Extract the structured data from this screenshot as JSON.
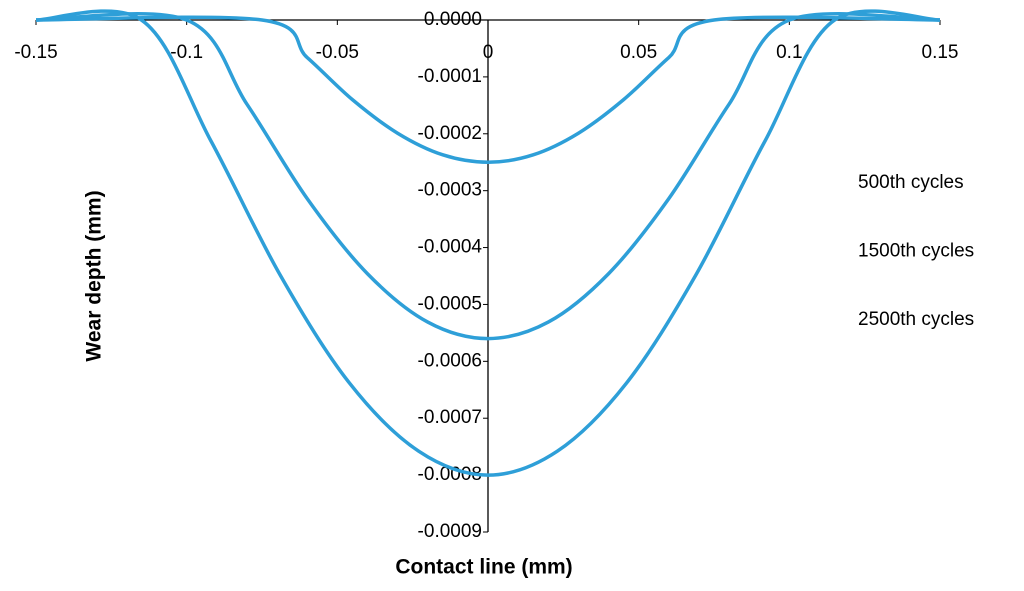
{
  "chart_data": {
    "type": "line",
    "x_label": "Contact line (mm)",
    "y_label": "Wear depth (mm)",
    "series": [
      {
        "name": "500th cycles",
        "color": "#2e9fd8",
        "x": [
          -0.15,
          -0.075,
          -0.06,
          -0.045,
          -0.03,
          -0.015,
          0,
          0.015,
          0.03,
          0.045,
          0.06,
          0.075,
          0.15
        ],
        "values": [
          0,
          0,
          -6.6e-05,
          -0.00014,
          -0.000199,
          -0.000237,
          -0.00025,
          -0.000237,
          -0.000199,
          -0.00014,
          -6.6e-05,
          0,
          0
        ]
      },
      {
        "name": "1500th cycles",
        "color": "#2e9fd8",
        "x": [
          -0.15,
          -0.1,
          -0.08,
          -0.06,
          -0.04,
          -0.02,
          0,
          0.02,
          0.04,
          0.06,
          0.08,
          0.1,
          0.15
        ],
        "values": [
          0,
          0,
          -0.000148,
          -0.000314,
          -0.000446,
          -0.000531,
          -0.00056,
          -0.000531,
          -0.000446,
          -0.000314,
          -0.000148,
          0,
          0
        ]
      },
      {
        "name": "2500th cycles",
        "color": "#2e9fd8",
        "x": [
          -0.15,
          -0.115,
          -0.092,
          -0.069,
          -0.046,
          -0.023,
          0,
          0.023,
          0.046,
          0.069,
          0.092,
          0.115,
          0.15
        ],
        "values": [
          0,
          0,
          -0.000212,
          -0.000448,
          -0.000638,
          -0.000758,
          -0.0008,
          -0.000758,
          -0.000638,
          -0.000448,
          -0.000212,
          0,
          0
        ]
      }
    ],
    "xlim": [
      -0.15,
      0.15
    ],
    "xticks": [
      -0.15,
      -0.1,
      -0.05,
      0,
      0.05,
      0.1,
      0.15
    ],
    "ylim": [
      -0.0009,
      0
    ],
    "yticks": [
      {
        "value": 0,
        "label": "0.0000"
      },
      -0.0001,
      -0.0002,
      -0.0003,
      -0.0004,
      -0.0005,
      -0.0006,
      -0.0007,
      -0.0008,
      -0.0009
    ],
    "legend": "right",
    "grid": false
  }
}
